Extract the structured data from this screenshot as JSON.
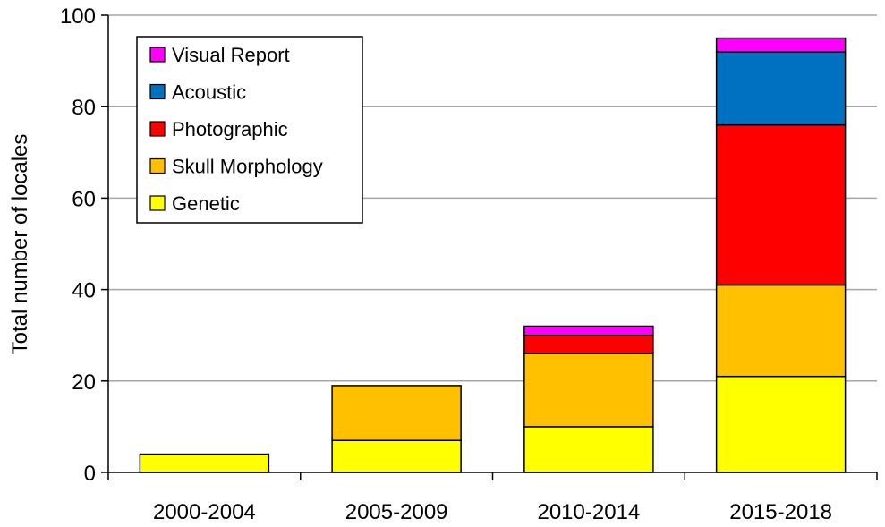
{
  "chart_data": {
    "type": "bar",
    "stacked": true,
    "categories": [
      "2000-2004",
      "2005-2009",
      "2010-2014",
      "2015-2018"
    ],
    "series": [
      {
        "name": "Genetic",
        "color": "#ffff00",
        "values": [
          4,
          7,
          10,
          21
        ]
      },
      {
        "name": "Skull Morphology",
        "color": "#ffc000",
        "values": [
          0,
          12,
          16,
          20
        ]
      },
      {
        "name": "Photographic",
        "color": "#ff0000",
        "values": [
          0,
          0,
          4,
          35
        ]
      },
      {
        "name": "Acoustic",
        "color": "#0070c0",
        "values": [
          0,
          0,
          0,
          16
        ]
      },
      {
        "name": "Visual Report",
        "color": "#ff00ff",
        "values": [
          0,
          0,
          2,
          3
        ]
      }
    ],
    "legend_order": [
      "Visual Report",
      "Acoustic",
      "Photographic",
      "Skull Morphology",
      "Genetic"
    ],
    "title": "",
    "xlabel": "",
    "ylabel": "Total number of locales",
    "ylim": [
      0,
      100
    ],
    "yticks": [
      0,
      20,
      40,
      60,
      80,
      100
    ],
    "grid": true,
    "legend_position": "top-left"
  }
}
